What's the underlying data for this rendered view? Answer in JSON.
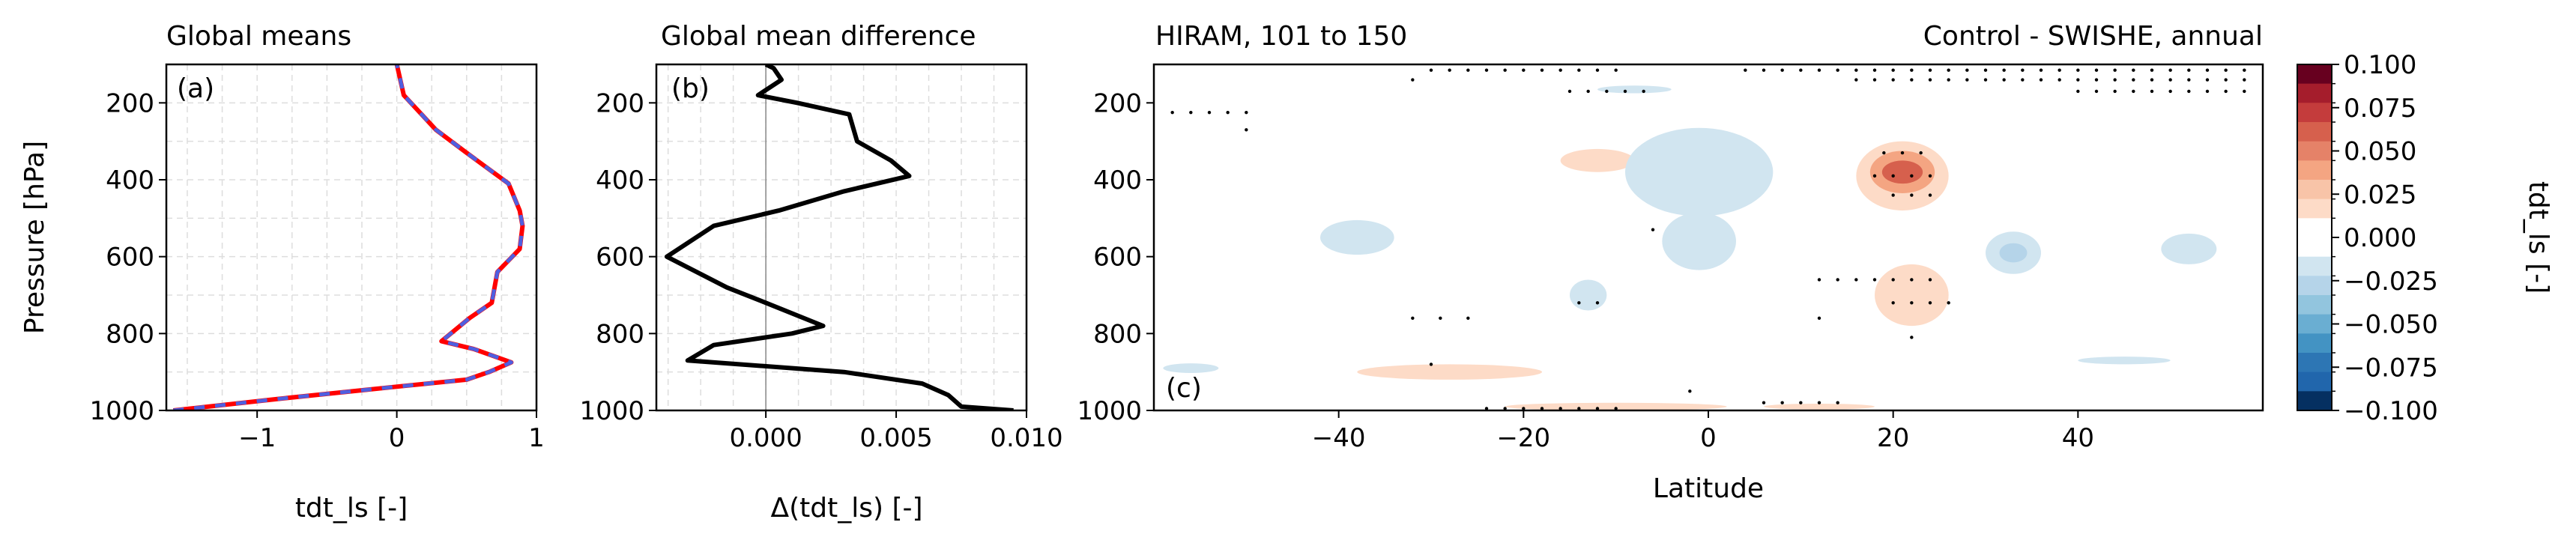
{
  "chart_data": [
    {
      "type": "line",
      "panel_label": "(a)",
      "title": "Global means",
      "xlabel": "tdt_ls [-]",
      "ylabel": "Pressure [hPa]",
      "xlim": [
        -1.65,
        1.0
      ],
      "ylim": [
        1000,
        100
      ],
      "xticks": [
        -1,
        0,
        1
      ],
      "yticks": [
        200,
        400,
        600,
        800,
        1000
      ],
      "grid": true,
      "series": [
        {
          "color": "#ff0000",
          "style": "solid",
          "values": [
            {
              "x": -1.6,
              "y": 1000
            },
            {
              "x": -0.85,
              "y": 970
            },
            {
              "x": -0.05,
              "y": 940
            },
            {
              "x": 0.5,
              "y": 920
            },
            {
              "x": 0.66,
              "y": 900
            },
            {
              "x": 0.82,
              "y": 875
            },
            {
              "x": 0.55,
              "y": 840
            },
            {
              "x": 0.32,
              "y": 820
            },
            {
              "x": 0.52,
              "y": 760
            },
            {
              "x": 0.68,
              "y": 720
            },
            {
              "x": 0.72,
              "y": 640
            },
            {
              "x": 0.88,
              "y": 580
            },
            {
              "x": 0.9,
              "y": 520
            },
            {
              "x": 0.88,
              "y": 480
            },
            {
              "x": 0.8,
              "y": 410
            },
            {
              "x": 0.5,
              "y": 330
            },
            {
              "x": 0.28,
              "y": 270
            },
            {
              "x": 0.05,
              "y": 180
            },
            {
              "x": 0.0,
              "y": 100
            }
          ]
        },
        {
          "color": "#4f5fe0",
          "style": "dashed",
          "values": [
            {
              "x": -1.6,
              "y": 1000
            },
            {
              "x": -0.85,
              "y": 970
            },
            {
              "x": -0.05,
              "y": 940
            },
            {
              "x": 0.5,
              "y": 920
            },
            {
              "x": 0.66,
              "y": 900
            },
            {
              "x": 0.82,
              "y": 875
            },
            {
              "x": 0.55,
              "y": 840
            },
            {
              "x": 0.32,
              "y": 820
            },
            {
              "x": 0.52,
              "y": 760
            },
            {
              "x": 0.68,
              "y": 720
            },
            {
              "x": 0.72,
              "y": 640
            },
            {
              "x": 0.88,
              "y": 580
            },
            {
              "x": 0.9,
              "y": 520
            },
            {
              "x": 0.88,
              "y": 480
            },
            {
              "x": 0.8,
              "y": 410
            },
            {
              "x": 0.5,
              "y": 330
            },
            {
              "x": 0.28,
              "y": 270
            },
            {
              "x": 0.05,
              "y": 180
            },
            {
              "x": 0.0,
              "y": 100
            }
          ]
        }
      ]
    },
    {
      "type": "line",
      "panel_label": "(b)",
      "title": "Global mean difference",
      "xlabel": "Δ(tdt_ls) [-]",
      "ylabel": "",
      "xlim": [
        -0.0042,
        0.01
      ],
      "ylim": [
        1000,
        100
      ],
      "xticks": [
        0.0,
        0.005,
        0.01
      ],
      "xtick_labels": [
        "0.000",
        "0.005",
        "0.010"
      ],
      "yticks": [
        200,
        400,
        600,
        800,
        1000
      ],
      "grid": true,
      "zero_line": 0.0,
      "series": [
        {
          "color": "#000000",
          "style": "solid",
          "values": [
            {
              "x": 0.0095,
              "y": 1000
            },
            {
              "x": 0.0075,
              "y": 990
            },
            {
              "x": 0.007,
              "y": 960
            },
            {
              "x": 0.006,
              "y": 930
            },
            {
              "x": 0.003,
              "y": 900
            },
            {
              "x": -0.003,
              "y": 870
            },
            {
              "x": -0.002,
              "y": 830
            },
            {
              "x": 0.001,
              "y": 800
            },
            {
              "x": 0.0022,
              "y": 780
            },
            {
              "x": 0.0,
              "y": 720
            },
            {
              "x": -0.0015,
              "y": 680
            },
            {
              "x": -0.0038,
              "y": 600
            },
            {
              "x": -0.002,
              "y": 520
            },
            {
              "x": 0.0005,
              "y": 480
            },
            {
              "x": 0.003,
              "y": 430
            },
            {
              "x": 0.0055,
              "y": 390
            },
            {
              "x": 0.0048,
              "y": 350
            },
            {
              "x": 0.0035,
              "y": 300
            },
            {
              "x": 0.0032,
              "y": 230
            },
            {
              "x": 0.0012,
              "y": 200
            },
            {
              "x": -0.0003,
              "y": 180
            },
            {
              "x": 0.0006,
              "y": 140
            },
            {
              "x": 0.0003,
              "y": 110
            },
            {
              "x": 0.0,
              "y": 100
            }
          ]
        }
      ]
    },
    {
      "type": "heatmap",
      "panel_label": "(c)",
      "title_left": "HIRAM, 101 to 150",
      "title_right": "Control - SWISHE, annual",
      "xlabel": "Latitude",
      "ylabel": "",
      "xlim": [
        -60,
        60
      ],
      "ylim": [
        1000,
        100
      ],
      "xticks": [
        -40,
        -20,
        0,
        20,
        40
      ],
      "yticks": [
        200,
        400,
        600,
        800,
        1000
      ],
      "colorbar": {
        "label": "tdt_ls [-]",
        "range": [
          -0.1,
          0.1
        ],
        "ticks": [
          0.1,
          0.075,
          0.05,
          0.025,
          0.0,
          -0.025,
          -0.05,
          -0.075,
          -0.1
        ],
        "tick_labels": [
          "0.100",
          "0.075",
          "0.050",
          "0.025",
          "0.000",
          "−0.025",
          "−0.050",
          "−0.075",
          "−0.100"
        ],
        "colors": [
          "#67001f",
          "#a51d2c",
          "#c43c3c",
          "#d6604d",
          "#e58268",
          "#f4a582",
          "#f8c4a8",
          "#fddbc7",
          "#ffffff",
          "#ffffff",
          "#d1e5f0",
          "#b5d4e9",
          "#92c5de",
          "#6aaed2",
          "#4393c3",
          "#2d76b4",
          "#2166ac",
          "#053061"
        ]
      },
      "features": [
        {
          "kind": "warm",
          "level": 3,
          "lat": 21,
          "p": 390,
          "dlat": 5,
          "dp": 180
        },
        {
          "kind": "warm",
          "level": 2,
          "lat": 21,
          "p": 380,
          "dlat": 3.5,
          "dp": 110
        },
        {
          "kind": "warm",
          "level": 1,
          "lat": 21,
          "p": 380,
          "dlat": 2.2,
          "dp": 60
        },
        {
          "kind": "warm",
          "level": 3,
          "lat": 22,
          "p": 700,
          "dlat": 4,
          "dp": 160
        },
        {
          "kind": "warm",
          "level": 3,
          "lat": -12,
          "p": 350,
          "dlat": 4,
          "dp": 60
        },
        {
          "kind": "warm",
          "level": 3,
          "lat": -28,
          "p": 900,
          "dlat": 10,
          "dp": 40
        },
        {
          "kind": "warm",
          "level": 3,
          "lat": -10,
          "p": 990,
          "dlat": 12,
          "dp": 20
        },
        {
          "kind": "warm",
          "level": 3,
          "lat": 12,
          "p": 990,
          "dlat": 6,
          "dp": 15
        },
        {
          "kind": "cool",
          "level": 3,
          "lat": -1,
          "p": 380,
          "dlat": 8,
          "dp": 230
        },
        {
          "kind": "cool",
          "level": 3,
          "lat": -1,
          "p": 560,
          "dlat": 4,
          "dp": 150
        },
        {
          "kind": "cool",
          "level": 3,
          "lat": -38,
          "p": 550,
          "dlat": 4,
          "dp": 90
        },
        {
          "kind": "cool",
          "level": 3,
          "lat": -13,
          "p": 700,
          "dlat": 2,
          "dp": 80
        },
        {
          "kind": "cool",
          "level": 3,
          "lat": 33,
          "p": 590,
          "dlat": 3,
          "dp": 110
        },
        {
          "kind": "cool",
          "level": 2,
          "lat": 33,
          "p": 590,
          "dlat": 1.5,
          "dp": 50
        },
        {
          "kind": "cool",
          "level": 3,
          "lat": 52,
          "p": 580,
          "dlat": 3,
          "dp": 80
        },
        {
          "kind": "cool",
          "level": 3,
          "lat": -56,
          "p": 890,
          "dlat": 3,
          "dp": 25
        },
        {
          "kind": "cool",
          "level": 3,
          "lat": 45,
          "p": 870,
          "dlat": 5,
          "dp": 20
        },
        {
          "kind": "cool",
          "level": 3,
          "lat": -8,
          "p": 165,
          "dlat": 4,
          "dp": 20
        }
      ],
      "stipple_rows": [
        {
          "p": 115,
          "from": -30,
          "to": -9,
          "step": 2
        },
        {
          "p": 115,
          "from": 4,
          "to": 59,
          "step": 2
        },
        {
          "p": 140,
          "from": -32,
          "to": -32,
          "step": 2
        },
        {
          "p": 140,
          "from": 16,
          "to": 59,
          "step": 2
        },
        {
          "p": 170,
          "from": -15,
          "to": -7,
          "step": 2
        },
        {
          "p": 170,
          "from": 40,
          "to": 58,
          "step": 2
        },
        {
          "p": 225,
          "from": -58,
          "to": -50,
          "step": 2
        },
        {
          "p": 270,
          "from": -50,
          "to": -50,
          "step": 2
        },
        {
          "p": 330,
          "from": 19,
          "to": 24,
          "step": 2
        },
        {
          "p": 390,
          "from": 18,
          "to": 24,
          "step": 2
        },
        {
          "p": 440,
          "from": 20,
          "to": 24,
          "step": 2
        },
        {
          "p": 530,
          "from": -6,
          "to": -6,
          "step": 2
        },
        {
          "p": 660,
          "from": 12,
          "to": 24,
          "step": 2
        },
        {
          "p": 720,
          "from": -14,
          "to": -12,
          "step": 2
        },
        {
          "p": 720,
          "from": 20,
          "to": 26,
          "step": 2
        },
        {
          "p": 760,
          "from": -32,
          "to": -26,
          "step": 3
        },
        {
          "p": 760,
          "from": 12,
          "to": 12,
          "step": 2
        },
        {
          "p": 810,
          "from": 22,
          "to": 22,
          "step": 2
        },
        {
          "p": 880,
          "from": -30,
          "to": -30,
          "step": 2
        },
        {
          "p": 950,
          "from": -2,
          "to": -2,
          "step": 2
        },
        {
          "p": 980,
          "from": 6,
          "to": 14,
          "step": 2
        },
        {
          "p": 995,
          "from": -24,
          "to": -10,
          "step": 2
        }
      ]
    }
  ]
}
